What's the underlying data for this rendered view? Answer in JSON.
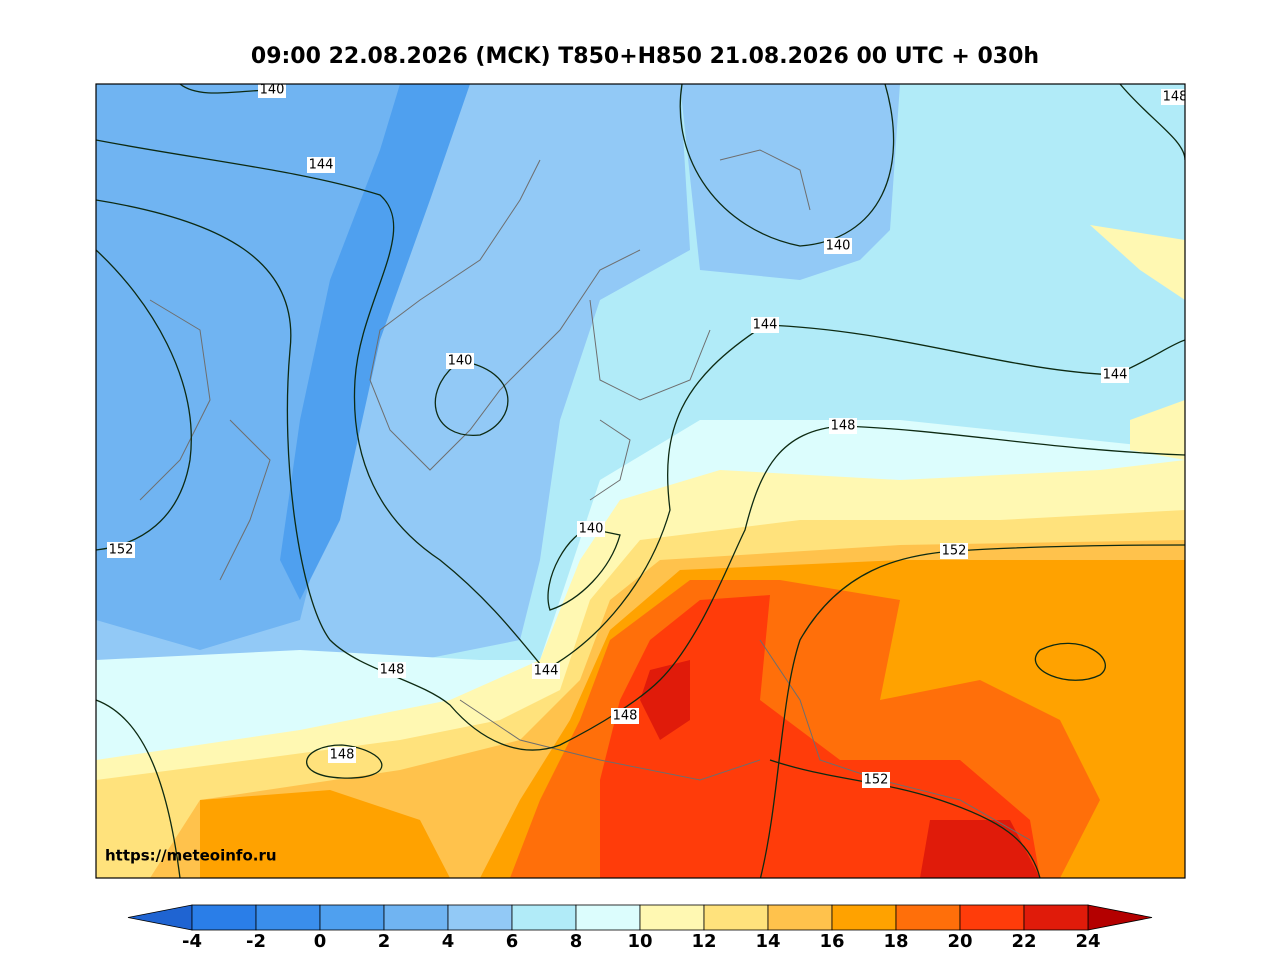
{
  "title": "09:00 22.08.2026 (MCK) T850+H850 21.08.2026 00 UTC + 030h",
  "contour_labels": [
    140,
    144,
    140,
    140,
    144,
    144,
    148,
    140,
    152,
    152,
    148,
    144,
    148,
    148,
    152,
    148
  ],
  "colorbar": {
    "ticks": [
      -4,
      -2,
      0,
      2,
      4,
      6,
      8,
      10,
      12,
      14,
      16,
      18,
      20,
      22,
      24
    ],
    "colors": [
      "#2a7ee8",
      "#3a8eec",
      "#4fa0ef",
      "#70b4f2",
      "#92c9f6",
      "#b1ebf8",
      "#dcfdfd",
      "#fff8b2",
      "#ffe27c",
      "#ffc24c",
      "#ffa200",
      "#ff6f0a",
      "#ff3c0a",
      "#e01b0a"
    ],
    "under": "#1f64d2",
    "over": "#b40000"
  },
  "source": "https://meteoinfo.ru"
}
